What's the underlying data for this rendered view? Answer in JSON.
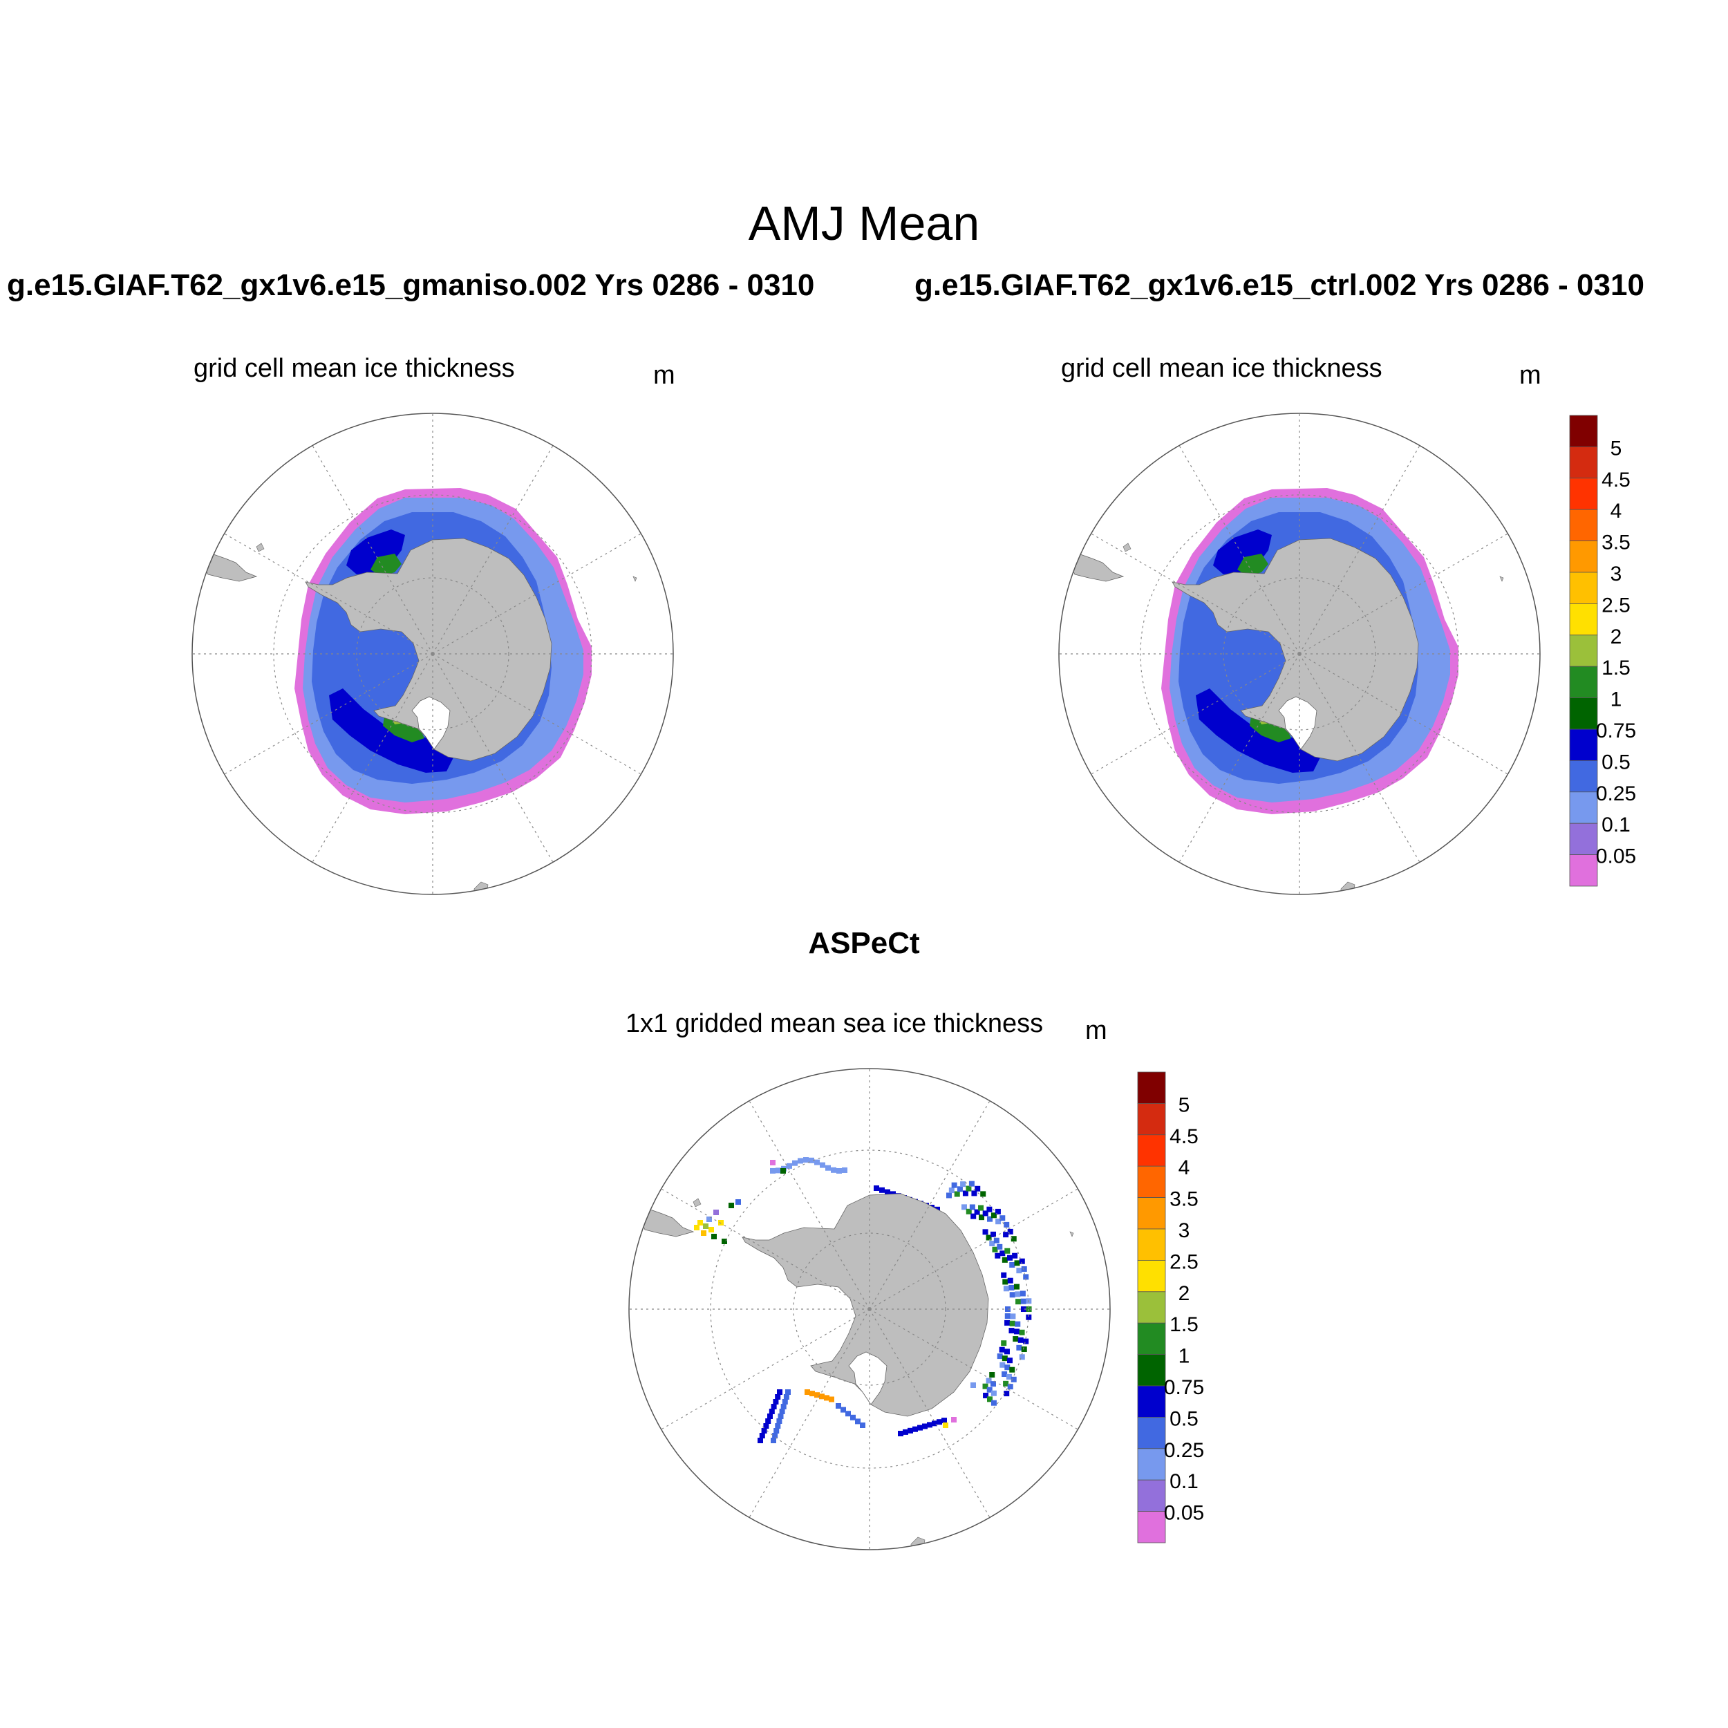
{
  "title": "AMJ Mean",
  "panels": [
    {
      "id": "gmaniso",
      "case_title": "g.e15.GIAF.T62_gx1v6.e15_gmaniso.002  Yrs 0286 - 0310",
      "subtitle": "grid cell mean ice thickness",
      "unit": "m"
    },
    {
      "id": "ctrl",
      "case_title": "g.e15.GIAF.T62_gx1v6.e15_ctrl.002  Yrs 0286 - 0310",
      "subtitle": "grid cell mean ice thickness",
      "unit": "m"
    },
    {
      "id": "aspect",
      "case_title": "ASPeCt",
      "subtitle": "1x1 gridded mean sea ice thickness",
      "unit": "m"
    }
  ],
  "colorbar": {
    "levels": [
      "5",
      "4.5",
      "4",
      "3.5",
      "3",
      "2.5",
      "2",
      "1.5",
      "1",
      "0.75",
      "0.5",
      "0.25",
      "0.1",
      "0.05"
    ],
    "colors": [
      "#800000",
      "#d42b10",
      "#ff3300",
      "#ff6600",
      "#ff9900",
      "#ffc000",
      "#ffe000",
      "#9bc03a",
      "#228b22",
      "#006400",
      "#0000cd",
      "#4169e1",
      "#7799ee",
      "#9370db",
      "#e070dd"
    ]
  },
  "map_colors": {
    "land": "#bebebe",
    "ocean": "#ffffff",
    "grid": "#888888"
  }
}
